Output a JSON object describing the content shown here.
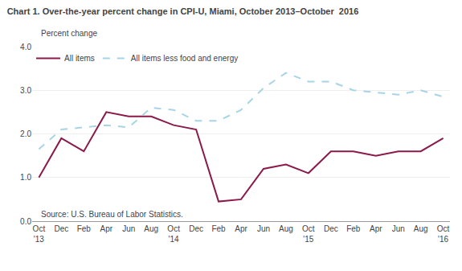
{
  "chart_data": {
    "type": "line",
    "title": "Chart 1. Over-the-year percent change in CPI-U, Miami, October 2013–October  2016",
    "ylabel": "Percent change",
    "source": "Source: U.S. Bureau of Labor Statistics.",
    "categories": [
      "Oct\n'13",
      "Dec",
      "Feb",
      "Apr",
      "Jun",
      "Aug",
      "Oct\n'14",
      "Dec",
      "Feb",
      "Apr",
      "Jun",
      "Aug",
      "Oct\n'15",
      "Dec",
      "Feb",
      "Apr",
      "Jun",
      "Aug",
      "Oct\n'16"
    ],
    "series": [
      {
        "name": "All items",
        "color": "#8B1A4A",
        "line_style": "solid",
        "values": [
          1.0,
          1.9,
          1.6,
          2.5,
          2.4,
          2.4,
          2.2,
          2.1,
          0.45,
          0.5,
          1.2,
          1.3,
          1.1,
          1.6,
          1.6,
          1.5,
          1.6,
          1.6,
          1.9
        ]
      },
      {
        "name": "All items less food and energy",
        "color": "#A8D4E6",
        "line_style": "dashed",
        "values": [
          1.65,
          2.1,
          2.15,
          2.2,
          2.15,
          2.6,
          2.55,
          2.3,
          2.3,
          2.55,
          3.05,
          3.4,
          3.2,
          3.2,
          3.0,
          2.95,
          2.9,
          3.0,
          2.85
        ]
      }
    ],
    "ylim": [
      0.0,
      4.0
    ],
    "yticks": [
      {
        "value": 0.0,
        "label": "0.0"
      },
      {
        "value": 1.0,
        "label": "1.0"
      },
      {
        "value": 2.0,
        "label": "2.0"
      },
      {
        "value": 3.0,
        "label": "3.0"
      },
      {
        "value": 4.0,
        "label": "4.0"
      }
    ],
    "grid": true,
    "legend": "upper left"
  }
}
